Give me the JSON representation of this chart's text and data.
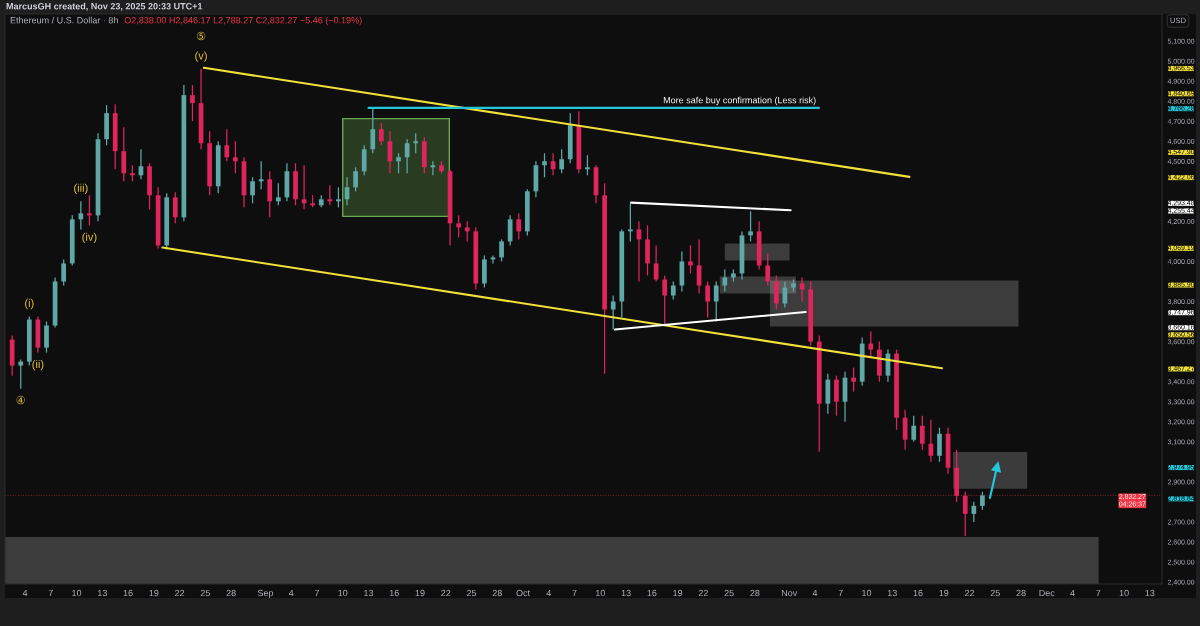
{
  "chart_data": {
    "type": "candlestick",
    "title": "Ethereum / U.S. Dollar · 8h",
    "subtitle": "O2,838.00 H2,846.17 L2,788.27 C2,832.27 −5.46 (−0.19%)",
    "ylabel": "USD",
    "x": [
      "2025-08-02T12:00",
      "2025-08-03T12:00",
      "2025-08-04T12:00",
      "2025-08-05T12:00",
      "2025-08-06T12:00",
      "2025-08-07T12:00",
      "2025-08-08T12:00",
      "2025-08-09T12:00",
      "2025-08-10T12:00",
      "2025-08-11T12:00",
      "2025-08-12T12:00",
      "2025-08-13T12:00",
      "2025-08-14T12:00",
      "2025-08-15T12:00",
      "2025-08-16T12:00",
      "2025-08-17T12:00",
      "2025-08-18T12:00",
      "2025-08-19T12:00",
      "2025-08-20T12:00",
      "2025-08-21T12:00",
      "2025-08-22T12:00",
      "2025-08-23T12:00",
      "2025-08-24T12:00",
      "2025-08-25T12:00",
      "2025-08-26T12:00",
      "2025-08-27T12:00",
      "2025-08-28T12:00",
      "2025-08-29T12:00",
      "2025-08-30T12:00",
      "2025-08-31T12:00",
      "2025-09-01T12:00",
      "2025-09-02T12:00",
      "2025-09-03T12:00",
      "2025-09-04T12:00",
      "2025-09-05T12:00",
      "2025-09-06T12:00",
      "2025-09-07T12:00",
      "2025-09-08T12:00",
      "2025-09-09T12:00",
      "2025-09-10T12:00",
      "2025-09-11T12:00",
      "2025-09-12T12:00",
      "2025-09-13T12:00",
      "2025-09-14T12:00",
      "2025-09-15T12:00",
      "2025-09-16T12:00",
      "2025-09-17T12:00",
      "2025-09-18T12:00",
      "2025-09-19T12:00",
      "2025-09-20T12:00",
      "2025-09-21T12:00",
      "2025-09-22T12:00",
      "2025-09-23T12:00",
      "2025-09-24T12:00",
      "2025-09-25T12:00",
      "2025-09-26T12:00",
      "2025-09-27T12:00",
      "2025-09-28T12:00",
      "2025-09-29T12:00",
      "2025-09-30T12:00",
      "2025-10-01T12:00",
      "2025-10-02T12:00",
      "2025-10-03T12:00",
      "2025-10-04T12:00",
      "2025-10-05T12:00",
      "2025-10-06T12:00",
      "2025-10-07T12:00",
      "2025-10-08T12:00",
      "2025-10-09T12:00",
      "2025-10-10T12:00",
      "2025-10-11T12:00",
      "2025-10-12T12:00",
      "2025-10-13T12:00",
      "2025-10-14T12:00",
      "2025-10-15T12:00",
      "2025-10-16T12:00",
      "2025-10-17T12:00",
      "2025-10-18T12:00",
      "2025-10-19T12:00",
      "2025-10-20T12:00",
      "2025-10-21T12:00",
      "2025-10-22T12:00",
      "2025-10-23T12:00",
      "2025-10-24T12:00",
      "2025-10-25T12:00",
      "2025-10-26T12:00",
      "2025-10-27T12:00",
      "2025-10-28T12:00",
      "2025-10-29T12:00",
      "2025-10-30T12:00",
      "2025-10-31T12:00",
      "2025-11-01T12:00",
      "2025-11-02T12:00",
      "2025-11-03T12:00",
      "2025-11-04T12:00",
      "2025-11-05T12:00",
      "2025-11-06T12:00",
      "2025-11-07T12:00",
      "2025-11-08T12:00",
      "2025-11-09T12:00",
      "2025-11-10T12:00",
      "2025-11-11T12:00",
      "2025-11-12T12:00",
      "2025-11-13T12:00",
      "2025-11-14T12:00",
      "2025-11-15T12:00",
      "2025-11-16T12:00",
      "2025-11-17T12:00",
      "2025-11-18T12:00",
      "2025-11-19T12:00",
      "2025-11-20T12:00",
      "2025-11-21T12:00",
      "2025-11-22T12:00",
      "2025-11-23T12:00"
    ],
    "ohlc": [
      [
        3610,
        3630,
        3430,
        3480
      ],
      [
        3480,
        3510,
        3365,
        3500
      ],
      [
        3500,
        3725,
        3480,
        3710
      ],
      [
        3710,
        3725,
        3545,
        3570
      ],
      [
        3570,
        3700,
        3545,
        3680
      ],
      [
        3680,
        3920,
        3670,
        3900
      ],
      [
        3900,
        4010,
        3880,
        3990
      ],
      [
        3990,
        4230,
        3980,
        4210
      ],
      [
        4210,
        4300,
        4160,
        4240
      ],
      [
        4240,
        4330,
        4180,
        4230
      ],
      [
        4230,
        4640,
        4200,
        4610
      ],
      [
        4610,
        4780,
        4580,
        4740
      ],
      [
        4740,
        4785,
        4460,
        4550
      ],
      [
        4550,
        4670,
        4400,
        4440
      ],
      [
        4440,
        4480,
        4400,
        4430
      ],
      [
        4430,
        4560,
        4410,
        4475
      ],
      [
        4475,
        4490,
        4260,
        4330
      ],
      [
        4330,
        4370,
        4065,
        4080
      ],
      [
        4080,
        4340,
        4060,
        4320
      ],
      [
        4320,
        4345,
        4190,
        4220
      ],
      [
        4220,
        4880,
        4200,
        4830
      ],
      [
        4830,
        4880,
        4700,
        4790
      ],
      [
        4790,
        4960,
        4560,
        4590
      ],
      [
        4590,
        4650,
        4330,
        4375
      ],
      [
        4375,
        4600,
        4340,
        4580
      ],
      [
        4580,
        4660,
        4500,
        4520
      ],
      [
        4520,
        4600,
        4440,
        4500
      ],
      [
        4500,
        4520,
        4270,
        4330
      ],
      [
        4330,
        4420,
        4290,
        4400
      ],
      [
        4400,
        4500,
        4360,
        4410
      ],
      [
        4410,
        4450,
        4220,
        4300
      ],
      [
        4300,
        4390,
        4280,
        4320
      ],
      [
        4320,
        4490,
        4300,
        4450
      ],
      [
        4450,
        4490,
        4280,
        4310
      ],
      [
        4310,
        4480,
        4260,
        4290
      ],
      [
        4290,
        4330,
        4270,
        4280
      ],
      [
        4280,
        4330,
        4270,
        4310
      ],
      [
        4310,
        4380,
        4280,
        4300
      ],
      [
        4300,
        4370,
        4270,
        4310
      ],
      [
        4310,
        4420,
        4280,
        4370
      ],
      [
        4370,
        4470,
        4350,
        4450
      ],
      [
        4450,
        4580,
        4430,
        4560
      ],
      [
        4560,
        4765,
        4540,
        4660
      ],
      [
        4660,
        4690,
        4580,
        4600
      ],
      [
        4600,
        4650,
        4440,
        4500
      ],
      [
        4500,
        4540,
        4440,
        4520
      ],
      [
        4520,
        4610,
        4440,
        4590
      ],
      [
        4590,
        4640,
        4540,
        4600
      ],
      [
        4600,
        4620,
        4440,
        4470
      ],
      [
        4470,
        4500,
        4430,
        4480
      ],
      [
        4480,
        4500,
        4440,
        4450
      ],
      [
        4450,
        4460,
        4080,
        4190
      ],
      [
        4190,
        4230,
        4120,
        4170
      ],
      [
        4170,
        4200,
        4100,
        4150
      ],
      [
        4150,
        4170,
        3860,
        3890
      ],
      [
        3890,
        4030,
        3870,
        4010
      ],
      [
        4010,
        4030,
        3990,
        4020
      ],
      [
        4020,
        4110,
        4000,
        4100
      ],
      [
        4100,
        4230,
        4080,
        4210
      ],
      [
        4210,
        4240,
        4110,
        4150
      ],
      [
        4150,
        4360,
        4130,
        4350
      ],
      [
        4350,
        4500,
        4320,
        4480
      ],
      [
        4480,
        4540,
        4420,
        4500
      ],
      [
        4500,
        4540,
        4430,
        4460
      ],
      [
        4460,
        4560,
        4440,
        4510
      ],
      [
        4510,
        4740,
        4490,
        4680
      ],
      [
        4680,
        4750,
        4440,
        4460
      ],
      [
        4460,
        4530,
        4430,
        4470
      ],
      [
        4470,
        4480,
        4290,
        4330
      ],
      [
        4330,
        4390,
        3440,
        3760
      ],
      [
        3760,
        3830,
        3660,
        3800
      ],
      [
        3800,
        4160,
        3720,
        4150
      ],
      [
        4150,
        4290,
        4100,
        4160
      ],
      [
        4160,
        4200,
        3900,
        4110
      ],
      [
        4110,
        4180,
        3930,
        3990
      ],
      [
        3990,
        4080,
        3900,
        3910
      ],
      [
        3910,
        3930,
        3680,
        3830
      ],
      [
        3830,
        3900,
        3810,
        3880
      ],
      [
        3880,
        4050,
        3850,
        4000
      ],
      [
        4000,
        4080,
        3940,
        3980
      ],
      [
        3980,
        4110,
        3840,
        3880
      ],
      [
        3880,
        3900,
        3720,
        3800
      ],
      [
        3800,
        3900,
        3700,
        3880
      ],
      [
        3880,
        3960,
        3850,
        3920
      ],
      [
        3920,
        3960,
        3900,
        3940
      ],
      [
        3940,
        4150,
        3910,
        4130
      ],
      [
        4130,
        4250,
        4100,
        4150
      ],
      [
        4150,
        4200,
        3960,
        3980
      ],
      [
        3980,
        4040,
        3880,
        3900
      ],
      [
        3900,
        3930,
        3760,
        3790
      ],
      [
        3790,
        3900,
        3770,
        3870
      ],
      [
        3870,
        3910,
        3850,
        3890
      ],
      [
        3890,
        3920,
        3800,
        3860
      ],
      [
        3860,
        3900,
        3580,
        3600
      ],
      [
        3600,
        3630,
        3050,
        3290
      ],
      [
        3290,
        3440,
        3240,
        3410
      ],
      [
        3410,
        3430,
        3230,
        3300
      ],
      [
        3300,
        3450,
        3200,
        3420
      ],
      [
        3420,
        3470,
        3350,
        3400
      ],
      [
        3400,
        3620,
        3380,
        3590
      ],
      [
        3590,
        3650,
        3520,
        3560
      ],
      [
        3560,
        3600,
        3400,
        3430
      ],
      [
        3430,
        3560,
        3400,
        3540
      ],
      [
        3540,
        3560,
        3160,
        3220
      ],
      [
        3220,
        3260,
        3060,
        3110
      ],
      [
        3110,
        3230,
        3100,
        3180
      ],
      [
        3180,
        3230,
        3060,
        3090
      ],
      [
        3090,
        3210,
        3000,
        3030
      ],
      [
        3030,
        3170,
        3000,
        3140
      ],
      [
        3140,
        3170,
        2940,
        2970
      ],
      [
        2970,
        3060,
        2800,
        2830
      ],
      [
        2830,
        2850,
        2630,
        2740
      ],
      [
        2740,
        2800,
        2700,
        2780
      ],
      [
        2780,
        2850,
        2760,
        2832.27
      ]
    ],
    "colors": [
      "#e0245e",
      "#60a8a8",
      "#60a8a8",
      "#e0245e",
      "#60a8a8",
      "#60a8a8",
      "#60a8a8",
      "#60a8a8",
      "#60a8a8",
      "#e0245e",
      "#60a8a8",
      "#60a8a8",
      "#e0245e",
      "#e0245e",
      "#e0245e",
      "#60a8a8",
      "#e0245e",
      "#e0245e",
      "#60a8a8",
      "#e0245e",
      "#60a8a8",
      "#e0245e",
      "#e0245e",
      "#e0245e",
      "#60a8a8",
      "#e0245e",
      "#e0245e",
      "#e0245e",
      "#60a8a8",
      "#60a8a8",
      "#e0245e",
      "#60a8a8",
      "#60a8a8",
      "#e0245e",
      "#e0245e",
      "#e0245e",
      "#60a8a8",
      "#e0245e",
      "#60a8a8",
      "#60a8a8",
      "#60a8a8",
      "#60a8a8",
      "#60a8a8",
      "#e0245e",
      "#e0245e",
      "#60a8a8",
      "#60a8a8",
      "#60a8a8",
      "#e0245e",
      "#60a8a8",
      "#e0245e",
      "#e0245e",
      "#e0245e",
      "#e0245e",
      "#e0245e",
      "#60a8a8",
      "#60a8a8",
      "#60a8a8",
      "#60a8a8",
      "#e0245e",
      "#60a8a8",
      "#60a8a8",
      "#60a8a8",
      "#e0245e",
      "#60a8a8",
      "#60a8a8",
      "#e0245e",
      "#60a8a8",
      "#e0245e",
      "#e0245e",
      "#60a8a8",
      "#60a8a8",
      "#60a8a8",
      "#e0245e",
      "#e0245e",
      "#e0245e",
      "#e0245e",
      "#60a8a8",
      "#60a8a8",
      "#e0245e",
      "#e0245e",
      "#e0245e",
      "#60a8a8",
      "#60a8a8",
      "#60a8a8",
      "#60a8a8",
      "#60a8a8",
      "#e0245e",
      "#e0245e",
      "#e0245e",
      "#60a8a8",
      "#60a8a8",
      "#e0245e",
      "#e0245e",
      "#e0245e",
      "#60a8a8",
      "#e0245e",
      "#60a8a8",
      "#e0245e",
      "#60a8a8",
      "#e0245e",
      "#e0245e",
      "#60a8a8",
      "#e0245e",
      "#e0245e",
      "#60a8a8",
      "#e0245e",
      "#e0245e",
      "#60a8a8",
      "#e0245e",
      "#e0245e",
      "#e0245e",
      "#60a8a8",
      "#60a8a8"
    ],
    "xlim": [
      "2025-08-01T16:00",
      "2025-12-14T10:00"
    ],
    "xticks": [
      {
        "value": "2025-08-04",
        "label": "4"
      },
      {
        "value": "2025-08-07",
        "label": "7"
      },
      {
        "value": "2025-08-10",
        "label": "10"
      },
      {
        "value": "2025-08-13",
        "label": "13"
      },
      {
        "value": "2025-08-16",
        "label": "16"
      },
      {
        "value": "2025-08-19",
        "label": "19"
      },
      {
        "value": "2025-08-22",
        "label": "22"
      },
      {
        "value": "2025-08-25",
        "label": "25"
      },
      {
        "value": "2025-08-28",
        "label": "28"
      },
      {
        "value": "2025-09-01",
        "label": "Sep"
      },
      {
        "value": "2025-09-04",
        "label": "4"
      },
      {
        "value": "2025-09-07",
        "label": "7"
      },
      {
        "value": "2025-09-10",
        "label": "10"
      },
      {
        "value": "2025-09-13",
        "label": "13"
      },
      {
        "value": "2025-09-16",
        "label": "16"
      },
      {
        "value": "2025-09-19",
        "label": "19"
      },
      {
        "value": "2025-09-22",
        "label": "22"
      },
      {
        "value": "2025-09-25",
        "label": "25"
      },
      {
        "value": "2025-09-28",
        "label": "28"
      },
      {
        "value": "2025-10-01",
        "label": "Oct"
      },
      {
        "value": "2025-10-04",
        "label": "4"
      },
      {
        "value": "2025-10-07",
        "label": "7"
      },
      {
        "value": "2025-10-10",
        "label": "10"
      },
      {
        "value": "2025-10-13",
        "label": "13"
      },
      {
        "value": "2025-10-16",
        "label": "16"
      },
      {
        "value": "2025-10-19",
        "label": "19"
      },
      {
        "value": "2025-10-22",
        "label": "22"
      },
      {
        "value": "2025-10-25",
        "label": "25"
      },
      {
        "value": "2025-10-28",
        "label": "28"
      },
      {
        "value": "2025-11-01",
        "label": "Nov"
      },
      {
        "value": "2025-11-04",
        "label": "4"
      },
      {
        "value": "2025-11-07",
        "label": "7"
      },
      {
        "value": "2025-11-10",
        "label": "10"
      },
      {
        "value": "2025-11-13",
        "label": "13"
      },
      {
        "value": "2025-11-16",
        "label": "16"
      },
      {
        "value": "2025-11-19",
        "label": "19"
      },
      {
        "value": "2025-11-22",
        "label": "22"
      },
      {
        "value": "2025-11-25",
        "label": "25"
      },
      {
        "value": "2025-11-28",
        "label": "28"
      },
      {
        "value": "2025-12-01",
        "label": "Dec"
      },
      {
        "value": "2025-12-04",
        "label": "4"
      },
      {
        "value": "2025-12-07",
        "label": "7"
      },
      {
        "value": "2025-12-10",
        "label": "10"
      },
      {
        "value": "2025-12-13",
        "label": "13"
      }
    ],
    "ylim": [
      2390,
      5235
    ],
    "yticks": [
      {
        "value": 5100,
        "label": "5,100.00"
      },
      {
        "value": 5000,
        "label": "5,000.00"
      },
      {
        "value": 4966.53,
        "label": "4,966.53"
      },
      {
        "value": 4900,
        "label": "4,900.00"
      },
      {
        "value": 4840.69,
        "label": "4,840.69"
      },
      {
        "value": 4800,
        "label": "4,800.00"
      },
      {
        "value": 4766.28,
        "label": "4,766.28"
      },
      {
        "value": 4700,
        "label": "4,700.00"
      },
      {
        "value": 4600,
        "label": "4,600.00"
      },
      {
        "value": 4547.9,
        "label": "4,547.90"
      },
      {
        "value": 4500,
        "label": "4,500.00"
      },
      {
        "value": 4422.06,
        "label": "4,422.06"
      },
      {
        "value": 4293.48,
        "label": "4,293.48"
      },
      {
        "value": 4255.44,
        "label": "4,255.44"
      },
      {
        "value": 4200,
        "label": "4,200.00"
      },
      {
        "value": 4069.19,
        "label": "4,069.19"
      },
      {
        "value": 4000,
        "label": "4,000.00"
      },
      {
        "value": 3885.9,
        "label": "3,885.90"
      },
      {
        "value": 3800,
        "label": "3,800.00"
      },
      {
        "value": 3747.96,
        "label": "3,747.96"
      },
      {
        "value": 3660.16,
        "label": "3,660.16"
      },
      {
        "value": 3650.56,
        "label": "3,650.56"
      },
      {
        "value": 3600,
        "label": "3,600.00"
      },
      {
        "value": 3467.27,
        "label": "3,467.27"
      },
      {
        "value": 3400,
        "label": "3,400.00"
      },
      {
        "value": 3300,
        "label": "3,300.00"
      },
      {
        "value": 3200,
        "label": "3,200.00"
      },
      {
        "value": 3100,
        "label": "3,100.00"
      },
      {
        "value": 2974.95,
        "label": "2,974.95"
      },
      {
        "value": 2900,
        "label": "2,900.00"
      },
      {
        "value": 2818.84,
        "label": "2,818.84"
      },
      {
        "value": 2700,
        "label": "2,700.00"
      },
      {
        "value": 2600,
        "label": "2,600.00"
      },
      {
        "value": 2500,
        "label": "2,500.00"
      },
      {
        "value": 2400,
        "label": "2,400.00"
      }
    ],
    "series": [
      {
        "type": "line",
        "color": "#f2e03a",
        "x": [
          "2025-08-24T20:00",
          "2025-09-12T20:00",
          "2025-10-27T00:00",
          "2025-11-15T00:00"
        ],
        "values": [
          4966.53,
          4840.69,
          4547.9,
          4422.06
        ]
      },
      {
        "type": "line",
        "color": "#f2e03a",
        "x": [
          "2025-08-20T00:00",
          "2025-09-16T16:00",
          "2025-10-22T03:00",
          "2025-11-18T19:00"
        ],
        "values": [
          4069.19,
          3885.9,
          3650.56,
          3467.27
        ]
      },
      {
        "type": "line",
        "name": "More safe buy confirmation (Less risk)",
        "color": "#26c6da",
        "x": [
          "2025-09-13T00:00",
          "2025-11-04T11:00"
        ],
        "values": [
          4766.28,
          4766.28
        ]
      },
      {
        "type": "line",
        "color": "#ffffff",
        "x": [
          "2025-10-13T14:00",
          "2025-11-01T04:00"
        ],
        "values": [
          4293.48,
          4255.44
        ]
      },
      {
        "type": "line",
        "color": "#ffffff",
        "x": [
          "2025-10-11T17:00",
          "2025-11-02T22:00"
        ],
        "values": [
          3660.16,
          3747.96
        ]
      },
      {
        "type": "line",
        "color": "#26c6da",
        "marker": "triangle",
        "x": [
          "2025-11-24T09:00",
          "2025-11-25T05:00"
        ],
        "values": [
          2818.84,
          2974.95
        ]
      },
      {
        "type": "line",
        "color": "#6aa84f",
        "line_style": "solid",
        "x": [
          "2025-09-10T00:00",
          "2025-09-22T10:00"
        ],
        "values": [
          null,
          null
        ],
        "lower": [
          4225,
          4225
        ],
        "upper": [
          4713,
          4713
        ]
      },
      {
        "type": "line",
        "color": "#a8a8a8",
        "x": [
          "2025-10-24T12:00",
          "2025-11-01T01:00"
        ],
        "values": [
          null,
          null
        ],
        "lower": [
          4005,
          4005
        ],
        "upper": [
          4090,
          4090
        ]
      },
      {
        "type": "line",
        "color": "#a5a5a5",
        "x": [
          "2025-10-23T22:00",
          "2025-11-01T19:00"
        ],
        "values": [
          null,
          null
        ],
        "lower": [
          3840,
          3840
        ],
        "upper": [
          3925,
          3925
        ]
      },
      {
        "type": "line",
        "color": "#aaaaaa",
        "x": [
          "2025-10-29T18:00",
          "2025-11-27T17:00"
        ],
        "values": [
          null,
          null
        ],
        "lower": [
          3675,
          3675
        ],
        "upper": [
          3905,
          3905
        ]
      },
      {
        "type": "line",
        "color": "#a7a7a7",
        "x": [
          "2025-11-20T02:00",
          "2025-11-28T17:00"
        ],
        "values": [
          null,
          null
        ],
        "lower": [
          2865,
          2865
        ],
        "upper": [
          3049,
          3049
        ]
      },
      {
        "type": "line",
        "color": "#a9a9a9",
        "x": [
          "2025-08-01T16:00",
          "2025-12-07T01:00"
        ],
        "values": [
          null,
          null
        ],
        "lower": [
          2390,
          2390
        ],
        "upper": [
          2625,
          2625
        ]
      }
    ],
    "ref_lines": [
      {
        "axis": "y",
        "value": 2832.27,
        "label": "2,832.27\n04:26:37",
        "color": "#f23645",
        "line_style": "dotted"
      }
    ],
    "annotations": [
      "MarcusGH created, Nov 23, 2025 20:33 UTC+1",
      {
        "text": "④",
        "x": "2025-08-03T12:00",
        "y": 3365
      },
      {
        "text": "(i)",
        "x": "2025-08-04T12:00",
        "y": 3725
      },
      {
        "text": "(ii)",
        "x": "2025-08-05T12:00",
        "y": 3545
      },
      {
        "text": "(iii)",
        "x": "2025-08-10T12:00",
        "y": 4300
      },
      {
        "text": "(iv)",
        "x": "2025-08-11T12:00",
        "y": 4180
      },
      {
        "text": "(v)",
        "x": "2025-08-24T12:00",
        "y": 4960
      },
      {
        "text": "⑤",
        "x": "2025-08-24T12:00",
        "y": 4960
      }
    ]
  }
}
